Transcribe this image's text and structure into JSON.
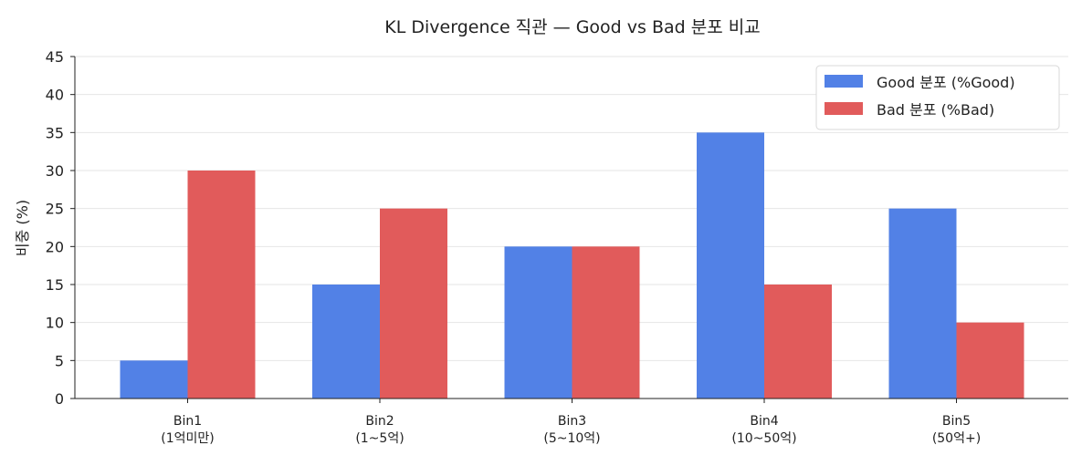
{
  "chart_data": {
    "type": "bar",
    "title": "KL Divergence 직관 — Good vs Bad 분포 비교",
    "xlabel": "",
    "ylabel": "비중 (%)",
    "ylim": [
      0,
      45
    ],
    "yticks": [
      0,
      5,
      10,
      15,
      20,
      25,
      30,
      35,
      40,
      45
    ],
    "grid": "horizontal",
    "legend_position": "top-right",
    "categories": [
      [
        "Bin1",
        "(1억미만)"
      ],
      [
        "Bin2",
        "(1~5억)"
      ],
      [
        "Bin3",
        "(5~10억)"
      ],
      [
        "Bin4",
        "(10~50억)"
      ],
      [
        "Bin5",
        "(50억+)"
      ]
    ],
    "series": [
      {
        "name": "Good 분포 (%Good)",
        "color": "#5281e6",
        "values": [
          5,
          15,
          20,
          35,
          25
        ]
      },
      {
        "name": "Bad 분포 (%Bad)",
        "color": "#e15b5b",
        "values": [
          30,
          25,
          20,
          15,
          10
        ]
      }
    ]
  }
}
